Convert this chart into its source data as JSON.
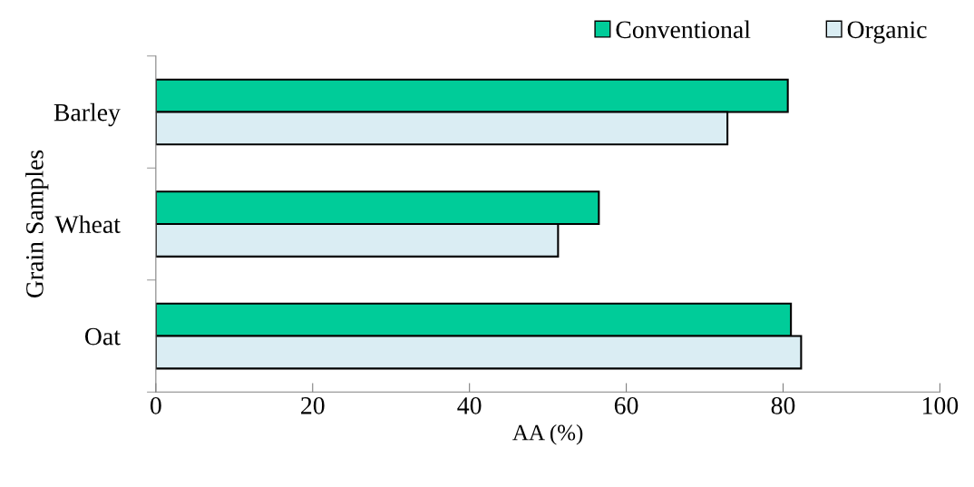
{
  "chart_data": {
    "type": "bar",
    "orientation": "horizontal",
    "categories": [
      "Barley",
      "Wheat",
      "Oat"
    ],
    "series": [
      {
        "name": "Conventional",
        "color": "#00cc99",
        "values": [
          80.6,
          56.5,
          81.0
        ]
      },
      {
        "name": "Organic",
        "color": "#daedf3",
        "values": [
          72.9,
          51.3,
          82.3
        ]
      }
    ],
    "xlabel": "AA (%)",
    "ylabel": "Grain Samples",
    "xlim": [
      0,
      100
    ],
    "xticks": [
      0,
      20,
      40,
      60,
      80,
      100
    ],
    "legend": "top right",
    "grid": false
  }
}
